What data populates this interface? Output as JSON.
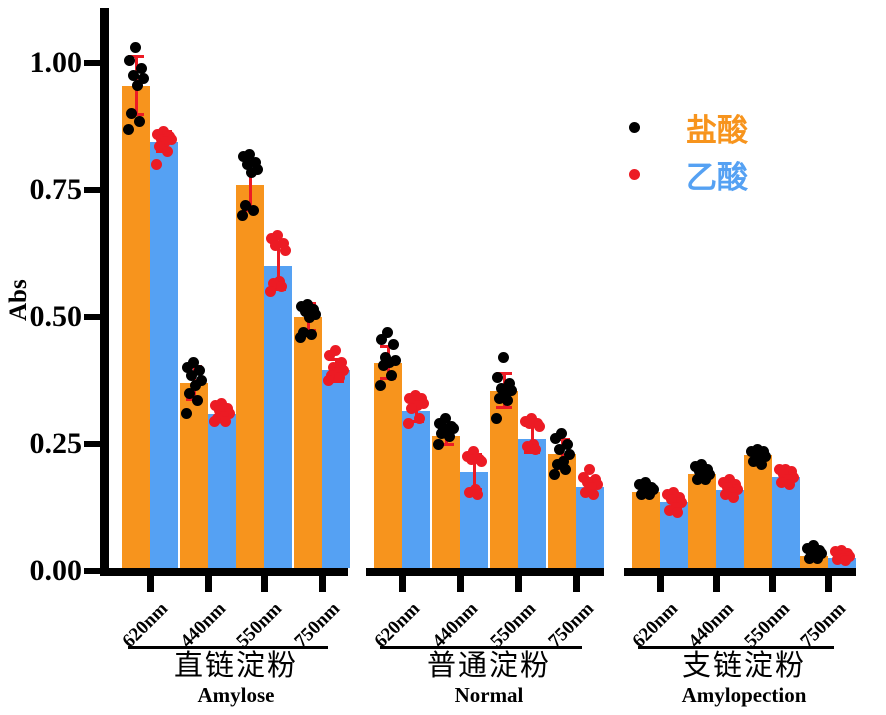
{
  "chart_data": {
    "type": "bar",
    "title": "",
    "ylabel": "Abs",
    "xlabel": "",
    "ylim": [
      0,
      1.05
    ],
    "yticks": [
      "0.00",
      "0.25",
      "0.50",
      "0.75",
      "1.00"
    ],
    "categories": [
      "620nm",
      "440nm",
      "550nm",
      "750nm"
    ],
    "grid": false,
    "legend_position": "upper right",
    "legend": [
      {
        "label": "盐酸",
        "dot_color": "#000000",
        "text_color": "#F7941D"
      },
      {
        "label": "乙酸",
        "dot_color": "#EC1B24",
        "text_color": "#55A1F3"
      }
    ],
    "colors": {
      "hcl_bar": "#F7941D",
      "acetic_bar": "#55A1F3",
      "hcl_dot": "#000000",
      "acetic_dot": "#EC1B24",
      "error_bar": "#EC1B24",
      "axis": "#000000"
    },
    "groups": [
      {
        "label_cn": "直链淀粉",
        "label_en": "Amylose",
        "bars": [
          {
            "category": "620nm",
            "hcl": {
              "mean": 0.955,
              "sd": 0.057,
              "points": [
                1.03,
                1.005,
                0.99,
                0.975,
                0.97,
                0.955,
                0.9,
                0.885,
                0.87
              ]
            },
            "acetic": {
              "mean": 0.845,
              "sd": 0.02,
              "points": [
                0.865,
                0.86,
                0.855,
                0.85,
                0.85,
                0.845,
                0.835,
                0.825,
                0.8
              ]
            }
          },
          {
            "category": "440nm",
            "hcl": {
              "mean": 0.37,
              "sd": 0.033,
              "points": [
                0.41,
                0.4,
                0.395,
                0.385,
                0.375,
                0.365,
                0.35,
                0.335,
                0.31
              ]
            },
            "acetic": {
              "mean": 0.31,
              "sd": 0.015,
              "points": [
                0.33,
                0.325,
                0.32,
                0.315,
                0.31,
                0.305,
                0.3,
                0.295,
                0.295
              ]
            }
          },
          {
            "category": "550nm",
            "hcl": {
              "mean": 0.76,
              "sd": 0.05,
              "points": [
                0.82,
                0.815,
                0.805,
                0.8,
                0.79,
                0.785,
                0.72,
                0.71,
                0.7
              ]
            },
            "acetic": {
              "mean": 0.6,
              "sd": 0.046,
              "points": [
                0.66,
                0.655,
                0.645,
                0.64,
                0.63,
                0.57,
                0.565,
                0.56,
                0.55
              ]
            }
          },
          {
            "category": "750nm",
            "hcl": {
              "mean": 0.5,
              "sd": 0.027,
              "points": [
                0.525,
                0.52,
                0.515,
                0.51,
                0.505,
                0.5,
                0.47,
                0.465,
                0.46
              ]
            },
            "acetic": {
              "mean": 0.395,
              "sd": 0.022,
              "points": [
                0.435,
                0.425,
                0.41,
                0.4,
                0.395,
                0.39,
                0.385,
                0.38,
                0.375
              ]
            }
          }
        ]
      },
      {
        "label_cn": "普通淀粉",
        "label_en": "Normal",
        "bars": [
          {
            "category": "620nm",
            "hcl": {
              "mean": 0.41,
              "sd": 0.032,
              "points": [
                0.47,
                0.455,
                0.445,
                0.42,
                0.415,
                0.41,
                0.405,
                0.385,
                0.365
              ]
            },
            "acetic": {
              "mean": 0.315,
              "sd": 0.02,
              "points": [
                0.345,
                0.34,
                0.34,
                0.335,
                0.33,
                0.325,
                0.32,
                0.3,
                0.29
              ]
            }
          },
          {
            "category": "440nm",
            "hcl": {
              "mean": 0.265,
              "sd": 0.016,
              "points": [
                0.3,
                0.29,
                0.285,
                0.28,
                0.28,
                0.275,
                0.27,
                0.265,
                0.25
              ]
            },
            "acetic": {
              "mean": 0.195,
              "sd": 0.034,
              "points": [
                0.235,
                0.225,
                0.22,
                0.22,
                0.215,
                0.16,
                0.155,
                0.15
              ]
            }
          },
          {
            "category": "550nm",
            "hcl": {
              "mean": 0.355,
              "sd": 0.033,
              "points": [
                0.42,
                0.38,
                0.37,
                0.36,
                0.355,
                0.345,
                0.34,
                0.335,
                0.3
              ]
            },
            "acetic": {
              "mean": 0.26,
              "sd": 0.026,
              "points": [
                0.3,
                0.295,
                0.29,
                0.29,
                0.285,
                0.25,
                0.245,
                0.24
              ]
            }
          },
          {
            "category": "750nm",
            "hcl": {
              "mean": 0.23,
              "sd": 0.028,
              "points": [
                0.27,
                0.26,
                0.25,
                0.24,
                0.23,
                0.215,
                0.21,
                0.2,
                0.19
              ]
            },
            "acetic": {
              "mean": 0.165,
              "sd": 0.017,
              "points": [
                0.2,
                0.185,
                0.18,
                0.175,
                0.17,
                0.165,
                0.155,
                0.15
              ]
            }
          }
        ]
      },
      {
        "label_cn": "支链淀粉",
        "label_en": "Amylopection",
        "bars": [
          {
            "category": "620nm",
            "hcl": {
              "mean": 0.155,
              "sd": 0.009,
              "points": [
                0.175,
                0.17,
                0.165,
                0.165,
                0.16,
                0.155,
                0.15,
                0.15
              ]
            },
            "acetic": {
              "mean": 0.135,
              "sd": 0.013,
              "points": [
                0.155,
                0.15,
                0.145,
                0.14,
                0.135,
                0.125,
                0.12,
                0.115
              ]
            }
          },
          {
            "category": "440nm",
            "hcl": {
              "mean": 0.19,
              "sd": 0.01,
              "points": [
                0.21,
                0.205,
                0.2,
                0.195,
                0.19,
                0.185,
                0.18,
                0.18
              ]
            },
            "acetic": {
              "mean": 0.16,
              "sd": 0.012,
              "points": [
                0.18,
                0.175,
                0.17,
                0.165,
                0.16,
                0.155,
                0.15,
                0.145
              ]
            }
          },
          {
            "category": "550nm",
            "hcl": {
              "mean": 0.228,
              "sd": 0.008,
              "points": [
                0.24,
                0.235,
                0.235,
                0.23,
                0.225,
                0.22,
                0.215,
                0.21
              ]
            },
            "acetic": {
              "mean": 0.185,
              "sd": 0.01,
              "points": [
                0.2,
                0.2,
                0.195,
                0.19,
                0.185,
                0.18,
                0.175,
                0.17
              ]
            }
          },
          {
            "category": "750nm",
            "hcl": {
              "mean": 0.03,
              "sd": 0.008,
              "points": [
                0.05,
                0.045,
                0.04,
                0.035,
                0.035,
                0.03,
                0.025,
                0.025
              ]
            },
            "acetic": {
              "mean": 0.025,
              "sd": 0.007,
              "points": [
                0.04,
                0.038,
                0.035,
                0.03,
                0.028,
                0.025,
                0.022,
                0.02
              ]
            }
          }
        ]
      }
    ]
  }
}
